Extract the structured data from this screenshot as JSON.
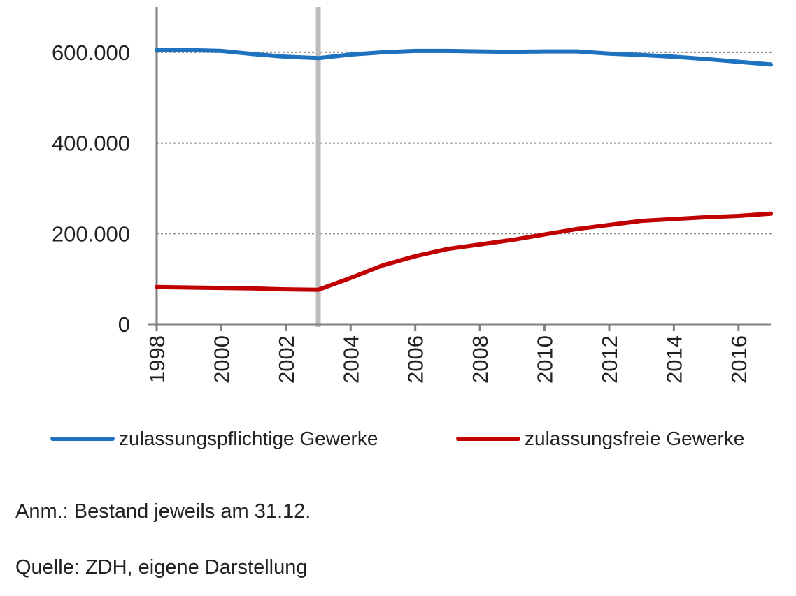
{
  "chart_data": {
    "type": "line",
    "x": [
      1998,
      1999,
      2000,
      2001,
      2002,
      2003,
      2004,
      2005,
      2006,
      2007,
      2008,
      2009,
      2010,
      2011,
      2012,
      2013,
      2014,
      2015,
      2016,
      2017
    ],
    "x_ticks": [
      "1998",
      "2000",
      "2002",
      "2004",
      "2006",
      "2008",
      "2010",
      "2012",
      "2014",
      "2016"
    ],
    "y_ticks": [
      "0",
      "200.000",
      "400.000",
      "600.000"
    ],
    "ylim": [
      0,
      700000
    ],
    "xlim": [
      1998,
      2017
    ],
    "grid": "horizontal dotted",
    "legend_position": "bottom",
    "marker_year": 2003,
    "series": [
      {
        "name": "zulassungspflichtige Gewerke",
        "color": "#1f72c0",
        "values": [
          605000,
          605000,
          603000,
          596000,
          590000,
          587000,
          595000,
          600000,
          603000,
          603000,
          602000,
          601000,
          602000,
          602000,
          597000,
          594000,
          590000,
          585000,
          579000,
          573000
        ]
      },
      {
        "name": "zulassungsfreie Gewerke",
        "color": "#c00000",
        "values": [
          82000,
          81000,
          80000,
          79000,
          77000,
          76000,
          102000,
          130000,
          150000,
          166000,
          176000,
          186000,
          198000,
          210000,
          219000,
          228000,
          232000,
          236000,
          239000,
          244000
        ]
      }
    ]
  },
  "notes": {
    "anm": "Anm.: Bestand jeweils am 31.12.",
    "quelle": "Quelle: ZDH, eigene Darstellung"
  }
}
